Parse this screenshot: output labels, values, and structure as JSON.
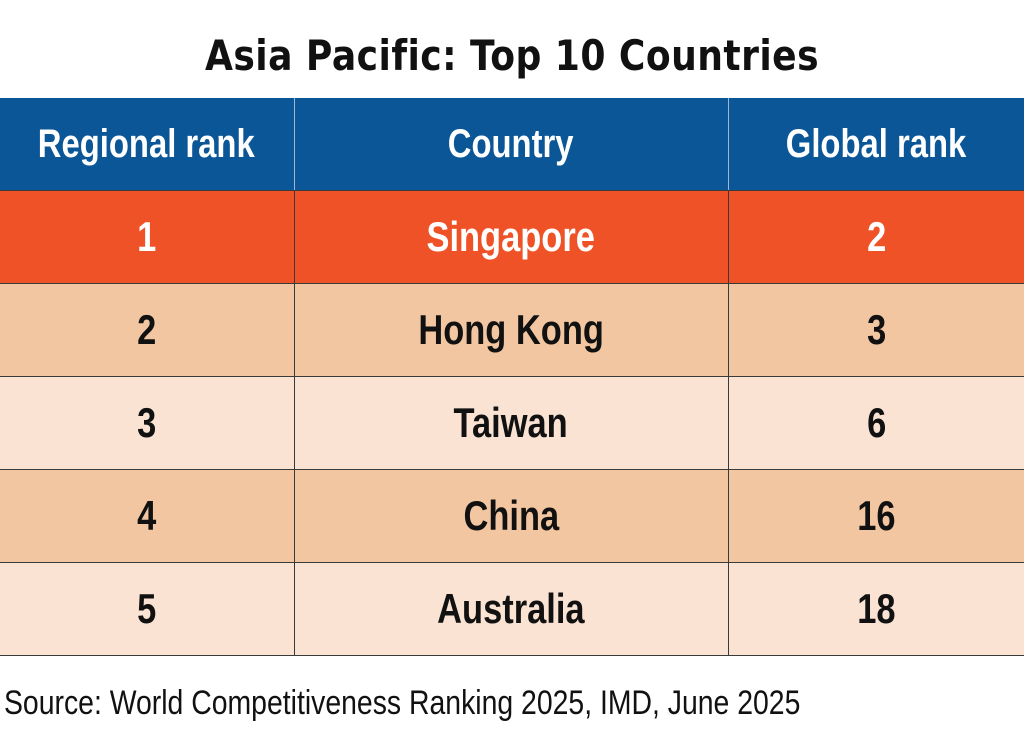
{
  "chart_data": {
    "type": "table",
    "title": "Asia Pacific: Top 10 Countries",
    "columns": [
      "Regional rank",
      "Country",
      "Global rank"
    ],
    "rows": [
      [
        "1",
        "Singapore",
        "2"
      ],
      [
        "2",
        "Hong Kong",
        "3"
      ],
      [
        "3",
        "Taiwan",
        "6"
      ],
      [
        "4",
        "China",
        "16"
      ],
      [
        "5",
        "Australia",
        "18"
      ]
    ],
    "source": "Source: World Competitiveness Ranking 2025, IMD, June 2025"
  },
  "colors": {
    "header_bg": "#0b5697",
    "highlight_row": "#ef5226",
    "row_dark": "#f2c6a0",
    "row_light": "#fae3d3"
  }
}
